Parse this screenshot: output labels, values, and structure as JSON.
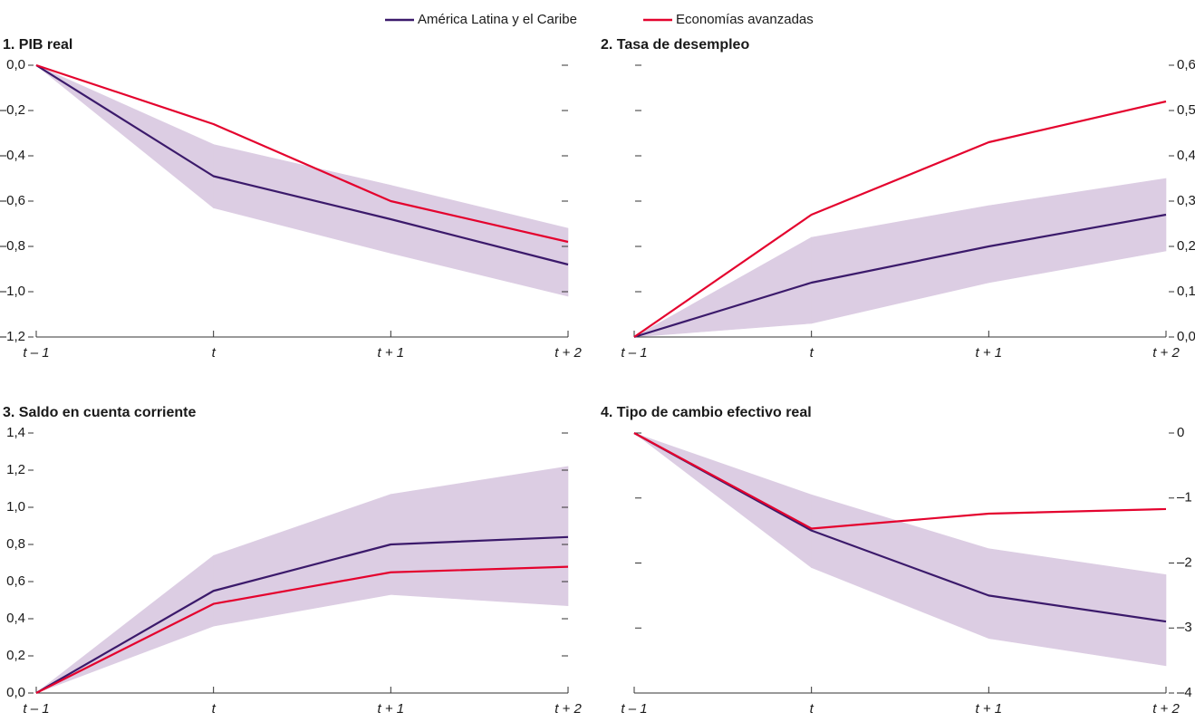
{
  "chart_data": [
    {
      "type": "line",
      "title": "1. PIB real",
      "axis_side": "left",
      "categories": [
        "t – 1",
        "t",
        "t + 1",
        "t + 2"
      ],
      "ylim": [
        -1.2,
        0
      ],
      "yticks": [
        {
          "value": 0,
          "label": "0,0"
        },
        {
          "value": -0.2,
          "label": "–0,2"
        },
        {
          "value": -0.4,
          "label": "–0,4"
        },
        {
          "value": -0.6,
          "label": "–0,6"
        },
        {
          "value": -0.8,
          "label": "–0,8"
        },
        {
          "value": -1.0,
          "label": "–1,0"
        },
        {
          "value": -1.2,
          "label": "–1,2"
        }
      ],
      "band": {
        "color": "#dccde3",
        "upper": [
          0,
          -0.35,
          -0.53,
          -0.72
        ],
        "lower": [
          0,
          -0.63,
          -0.83,
          -1.02
        ]
      },
      "series": [
        {
          "name": "América Latina y el Caribe",
          "color": "#3b1a6b",
          "values": [
            0,
            -0.49,
            -0.68,
            -0.88
          ]
        },
        {
          "name": "Economías avanzadas",
          "color": "#e4032e",
          "values": [
            0,
            -0.26,
            -0.6,
            -0.78
          ]
        }
      ]
    },
    {
      "type": "line",
      "title": "2. Tasa de desempleo",
      "axis_side": "right",
      "categories": [
        "t – 1",
        "t",
        "t + 1",
        "t + 2"
      ],
      "ylim": [
        0,
        0.6
      ],
      "yticks": [
        {
          "value": 0,
          "label": "0,0"
        },
        {
          "value": 0.1,
          "label": "0,1"
        },
        {
          "value": 0.2,
          "label": "0,2"
        },
        {
          "value": 0.3,
          "label": "0,3"
        },
        {
          "value": 0.4,
          "label": "0,4"
        },
        {
          "value": 0.5,
          "label": "0,5"
        },
        {
          "value": 0.6,
          "label": "0,6"
        }
      ],
      "band": {
        "color": "#dccde3",
        "upper": [
          0,
          0.22,
          0.29,
          0.35
        ],
        "lower": [
          0,
          0.03,
          0.12,
          0.19
        ]
      },
      "series": [
        {
          "color": "#3b1a6b",
          "values": [
            0,
            0.12,
            0.2,
            0.27
          ]
        },
        {
          "color": "#e4032e",
          "values": [
            0,
            0.27,
            0.43,
            0.52
          ]
        }
      ]
    },
    {
      "type": "line",
      "title": "3. Saldo en cuenta corriente",
      "axis_side": "left",
      "categories": [
        "t – 1",
        "t",
        "t + 1",
        "t + 2"
      ],
      "ylim": [
        0,
        1.4
      ],
      "yticks": [
        {
          "value": 0,
          "label": "0,0"
        },
        {
          "value": 0.2,
          "label": "0,2"
        },
        {
          "value": 0.4,
          "label": "0,4"
        },
        {
          "value": 0.6,
          "label": "0,6"
        },
        {
          "value": 0.8,
          "label": "0,8"
        },
        {
          "value": 1.0,
          "label": "1,0"
        },
        {
          "value": 1.2,
          "label": "1,2"
        },
        {
          "value": 1.4,
          "label": "1,4"
        }
      ],
      "band": {
        "color": "#dccde3",
        "upper": [
          0,
          0.74,
          1.07,
          1.22
        ],
        "lower": [
          0,
          0.36,
          0.53,
          0.47
        ]
      },
      "series": [
        {
          "color": "#3b1a6b",
          "values": [
            0,
            0.55,
            0.8,
            0.84
          ]
        },
        {
          "color": "#e4032e",
          "values": [
            0,
            0.48,
            0.65,
            0.68
          ]
        }
      ]
    },
    {
      "type": "line",
      "title": "4. Tipo de cambio efectivo real",
      "axis_side": "right",
      "categories": [
        "t – 1",
        "t",
        "t + 1",
        "t + 2"
      ],
      "ylim": [
        -4,
        0
      ],
      "yticks": [
        0,
        {
          "value": -1,
          "label": "–1"
        },
        {
          "value": -2,
          "label": "–2"
        },
        {
          "value": -3,
          "label": "–3"
        },
        {
          "value": -4,
          "label": "–4"
        }
      ],
      "band": {
        "color": "#dccde3",
        "upper": [
          0,
          -0.95,
          -1.78,
          -2.18
        ],
        "lower": [
          0,
          -2.07,
          -3.16,
          -3.58
        ]
      },
      "series": [
        {
          "color": "#3b1a6b",
          "values": [
            0,
            -1.5,
            -2.5,
            -2.9
          ]
        },
        {
          "color": "#e4032e",
          "values": [
            0,
            -1.47,
            -1.24,
            -1.17
          ]
        }
      ]
    }
  ]
}
